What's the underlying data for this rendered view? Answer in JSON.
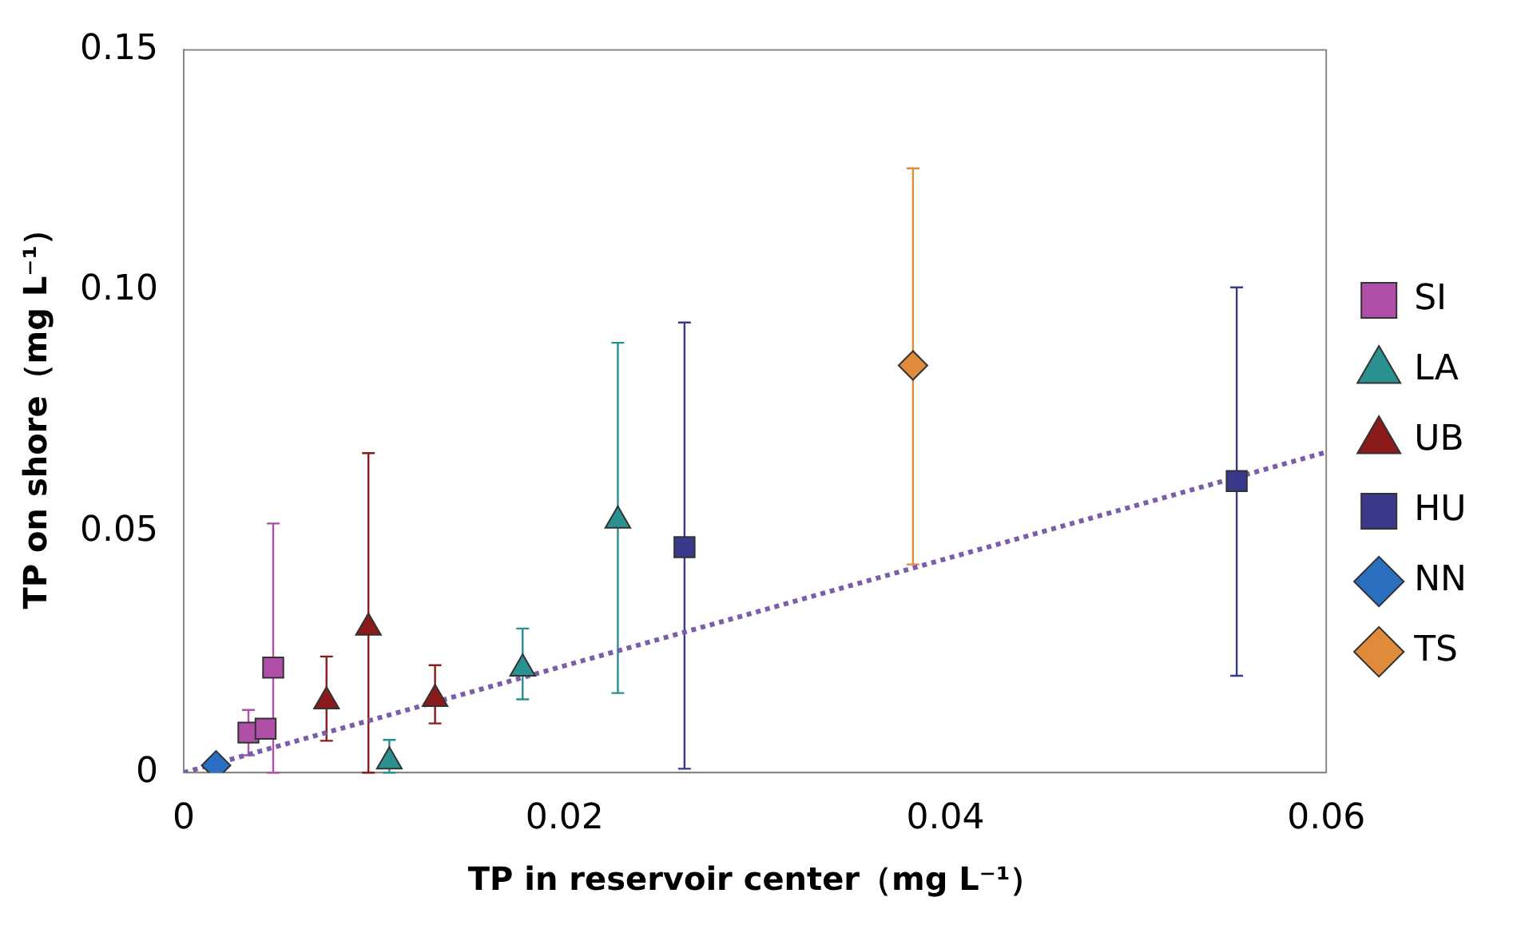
{
  "chart_data": {
    "type": "scatter",
    "xlabel": "TP in reservoir center（mg L⁻¹）",
    "ylabel": "TP on shore（mg L⁻¹）",
    "xlim": [
      0,
      0.06
    ],
    "xticks": [
      0,
      0.02,
      0.04,
      0.06
    ],
    "ylim": [
      0,
      0.15
    ],
    "yticks": [
      0,
      {
        "value": 0.05,
        "label": "0.05"
      },
      {
        "value": 0.1,
        "label": "0.10"
      },
      0.15
    ],
    "grid": false,
    "legend": "right",
    "series": [
      {
        "name": "SI",
        "color": "#b04fa8",
        "marker": "square",
        "x": [
          0.0034,
          0.0043,
          0.0047
        ],
        "values": [
          0.0083,
          0.0091,
          0.0218
        ],
        "errors": [
          0.0047,
          null,
          [
            0,
            0.0517
          ]
        ]
      },
      {
        "name": "LA",
        "color": "#2a9090",
        "marker": "triangle",
        "x": [
          0.0108,
          0.0178,
          0.0228
        ],
        "values": [
          0.0023,
          0.0216,
          0.0523
        ],
        "errors": [
          [
            0,
            0.0068
          ],
          [
            0.0152,
            0.0299
          ],
          [
            0.0165,
            0.0892
          ]
        ]
      },
      {
        "name": "UB",
        "color": "#8b1a1a",
        "marker": "triangle",
        "x": [
          0.0075,
          0.0097,
          0.0132
        ],
        "values": [
          0.0148,
          0.0301,
          0.0153
        ],
        "errors": [
          [
            0.0066,
            0.0241
          ],
          [
            0,
            0.0663
          ],
          [
            0.0102,
            0.0223
          ]
        ]
      },
      {
        "name": "HU",
        "color": "#3a3a8c",
        "marker": "square",
        "x": [
          0.0263,
          0.0553
        ],
        "values": [
          0.0468,
          0.0605
        ],
        "errors": [
          [
            0.0008,
            0.0934
          ],
          [
            0.0201,
            0.1007
          ]
        ]
      },
      {
        "name": "NN",
        "color": "#2a6fc0",
        "marker": "diamond",
        "x": [
          0.0017
        ],
        "values": [
          0.0015
        ]
      },
      {
        "name": "TS",
        "color": "#e08a3c",
        "marker": "diamond",
        "x": [
          0.0383
        ],
        "values": [
          0.0845
        ],
        "errors": [
          [
            0.0432,
            0.1254
          ]
        ]
      },
      {
        "type": "line",
        "color": "#7b5ea7",
        "marker": "none",
        "line_style": "dotted",
        "x": [
          0,
          0.06
        ],
        "values": [
          0,
          0.0665
        ]
      }
    ]
  }
}
